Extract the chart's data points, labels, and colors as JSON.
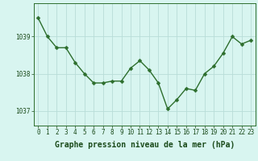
{
  "x": [
    0,
    1,
    2,
    3,
    4,
    5,
    6,
    7,
    8,
    9,
    10,
    11,
    12,
    13,
    14,
    15,
    16,
    17,
    18,
    19,
    20,
    21,
    22,
    23
  ],
  "y": [
    1039.5,
    1039.0,
    1038.7,
    1038.7,
    1038.3,
    1038.0,
    1037.75,
    1037.75,
    1037.8,
    1037.8,
    1038.15,
    1038.35,
    1038.1,
    1037.75,
    1037.05,
    1037.3,
    1037.6,
    1037.55,
    1038.0,
    1038.2,
    1038.55,
    1039.0,
    1038.8,
    1038.9
  ],
  "line_color": "#2d6e2d",
  "marker": "D",
  "marker_size": 2.5,
  "bg_color": "#d8f5f0",
  "grid_color": "#b8ddd8",
  "xlabel": "Graphe pression niveau de la mer (hPa)",
  "xlabel_color": "#1a4a1a",
  "xlabel_fontsize": 7,
  "tick_color": "#1a4a1a",
  "tick_fontsize": 5.5,
  "ylim": [
    1036.6,
    1039.9
  ],
  "yticks": [
    1037,
    1038,
    1039
  ],
  "xticks": [
    0,
    1,
    2,
    3,
    4,
    5,
    6,
    7,
    8,
    9,
    10,
    11,
    12,
    13,
    14,
    15,
    16,
    17,
    18,
    19,
    20,
    21,
    22,
    23
  ],
  "spine_color": "#2d6e2d",
  "line_width": 1.0,
  "fig_width": 3.2,
  "fig_height": 2.0,
  "dpi": 100
}
